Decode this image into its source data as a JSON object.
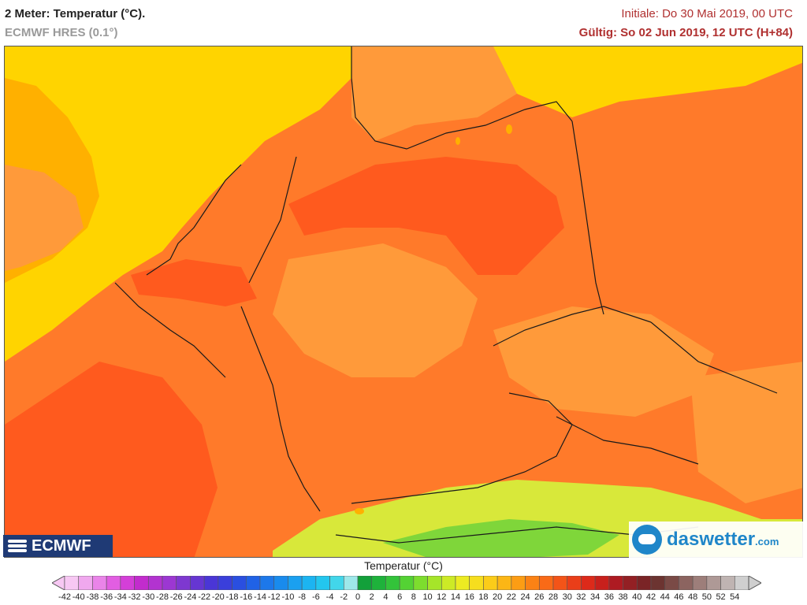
{
  "header": {
    "title": "2 Meter: Temperatur (°C).",
    "model": "ECMWF HRES (0.1°)",
    "initial": "Initiale: Do 30 Mai 2019, 00 UTC",
    "valid": "Gültig: So 02 Jun 2019, 12 UTC (H+84)"
  },
  "logos": {
    "ecmwf": "ECMWF",
    "daswetter_main": "daswetter",
    "daswetter_tld": ".com"
  },
  "legend": {
    "title": "Temperatur (°C)",
    "labels": [
      "-42",
      "-40",
      "-38",
      "-36",
      "-34",
      "-32",
      "-30",
      "-28",
      "-26",
      "-24",
      "-22",
      "-20",
      "-18",
      "-16",
      "-14",
      "-12",
      "-10",
      "-8",
      "-6",
      "-4",
      "-2",
      "0",
      "2",
      "4",
      "6",
      "8",
      "10",
      "12",
      "14",
      "16",
      "18",
      "20",
      "22",
      "24",
      "26",
      "28",
      "30",
      "32",
      "34",
      "36",
      "38",
      "40",
      "42",
      "44",
      "46",
      "48",
      "50",
      "52",
      "54"
    ],
    "colors": [
      "#f7c8f3",
      "#f0a8ee",
      "#ea84e9",
      "#e25ee2",
      "#d43fd8",
      "#c22ccd",
      "#b233d0",
      "#9c37d2",
      "#7e38d0",
      "#6636d2",
      "#4a36d6",
      "#3a3fdb",
      "#2a4fe0",
      "#2062e6",
      "#1d78ea",
      "#198bed",
      "#1aa0f0",
      "#1cb4f1",
      "#23c6ee",
      "#42d6ea",
      "#9ee8ea",
      "#12a03a",
      "#1eb23b",
      "#33c33a",
      "#54d234",
      "#7ddd2e",
      "#a6e529",
      "#cdea26",
      "#eceb22",
      "#f6de1e",
      "#fbcc19",
      "#fcb615",
      "#fc9d14",
      "#fb8215",
      "#f96a17",
      "#f35418",
      "#ea3e19",
      "#dd2a1a",
      "#c8201c",
      "#ae1b22",
      "#932024",
      "#7a2426",
      "#6c3431",
      "#7a4a46",
      "#8c6460",
      "#9d7e7a",
      "#ae9996",
      "#bfb4b2",
      "#cfcfcf"
    ],
    "min_value": -42,
    "max_value": 54
  },
  "map_colors": {
    "sea_cool": "#ffd400",
    "sea_warm": "#ffb000",
    "land_base": "#ff7a2a",
    "land_hot": "#ff5a1e",
    "land_mild": "#ff9a3a",
    "alps_cool": "#d8e83a",
    "alps_cold": "#7fd63a",
    "border": "#1a1a1a"
  }
}
